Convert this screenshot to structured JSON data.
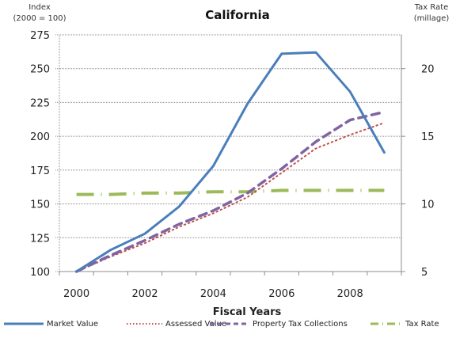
{
  "chart_data": {
    "type": "line",
    "title": "California",
    "xlabel": "Fiscal Years",
    "ylabel_left": "Index\n(2000 = 100)",
    "ylabel_left_lines": [
      "Index",
      "(2000 = 100)"
    ],
    "ylabel_right_lines": [
      "Tax Rate",
      "(millage)"
    ],
    "categories": [
      "2000",
      "2001",
      "2002",
      "2003",
      "2004",
      "2005",
      "2006",
      "2007",
      "2008",
      "2009"
    ],
    "x_tick_labels": [
      "2000",
      "2002",
      "2004",
      "2006",
      "2008"
    ],
    "ylim_left": [
      100,
      275
    ],
    "yticks_left": [
      100,
      125,
      150,
      175,
      200,
      225,
      250,
      275
    ],
    "ylim_right": [
      5,
      22.5
    ],
    "yticks_right": [
      5,
      10,
      15,
      20
    ],
    "grid": true,
    "legend_position": "bottom",
    "series": [
      {
        "name": "Market Value",
        "axis": "left",
        "color": "#4a7ebb",
        "style": "solid",
        "values": [
          100,
          116,
          128,
          148,
          178,
          224,
          261,
          262,
          233,
          188
        ]
      },
      {
        "name": "Assessed Value",
        "axis": "left",
        "color": "#c0504d",
        "style": "dotted",
        "values": [
          100,
          111,
          121,
          133,
          143,
          155,
          173,
          191,
          201,
          210
        ]
      },
      {
        "name": "Property Tax Collections",
        "axis": "left",
        "color": "#8064a2",
        "style": "dashed",
        "values": [
          100,
          112,
          123,
          135,
          145,
          158,
          176,
          196,
          212,
          218
        ]
      },
      {
        "name": "Tax Rate",
        "axis": "right",
        "color": "#9bbb59",
        "style": "dashdot",
        "values": [
          10.7,
          10.7,
          10.8,
          10.8,
          10.9,
          10.9,
          11.0,
          11.0,
          11.0,
          11.0
        ]
      }
    ]
  }
}
